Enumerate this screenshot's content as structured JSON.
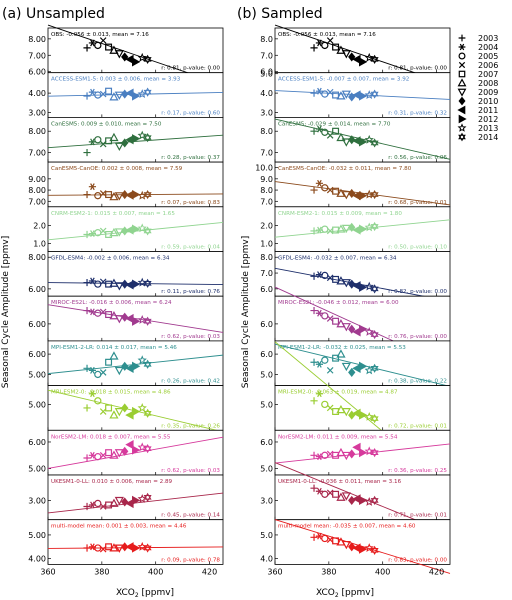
{
  "figure": {
    "panel_a_title": "(a) Unsampled",
    "panel_b_title": "(b) Sampled",
    "ylabel": "Seasonal Cycle Amplitude [ppmv]",
    "xlabel_main": "XCO",
    "xlabel_sub": "2",
    "xlabel_unit": " [ppmv]"
  },
  "chart_data": {
    "type": "scatter",
    "x_ticks": [
      "360",
      "380",
      "400",
      "420"
    ],
    "xlim": [
      360,
      425
    ],
    "years": [
      "2003",
      "2004",
      "2005",
      "2006",
      "2007",
      "2008",
      "2009",
      "2010",
      "2011",
      "2012",
      "2013",
      "2014"
    ],
    "markers": [
      "plus",
      "asterisk",
      "circle",
      "x",
      "square",
      "triangle-up",
      "triangle-down",
      "diamond",
      "triangle-left",
      "triangle-right",
      "star",
      "star6"
    ],
    "xco2": [
      374.5,
      376.5,
      378.5,
      380.5,
      382.5,
      384.5,
      386.5,
      388.5,
      390.5,
      392.5,
      395,
      397
    ],
    "rows": [
      {
        "id": "obs",
        "color": "#000000",
        "ylim": [
          6.0,
          8.6
        ],
        "ticks_a": [
          "8.00",
          "7.00",
          "6.00"
        ],
        "ticks_b": [
          "9.0",
          "8.0",
          "7.0",
          "6.0"
        ],
        "a": {
          "label": "OBS: -0.056 ± 0.013, mean = 7.16",
          "stats": "r: 0.81, p-value: 0.00",
          "slope": -0.056,
          "mean": 7.16,
          "values": [
            7.45,
            7.75,
            7.6,
            7.9,
            7.5,
            7.3,
            7.1,
            6.9,
            6.75,
            6.6,
            6.85,
            6.75
          ]
        },
        "b": {
          "label": "OBS: -0.056 ± 0.013, mean = 7.16",
          "stats": "r: 0.81, p-value: 0.00",
          "slope": -0.056,
          "mean": 7.16,
          "values": [
            7.45,
            7.75,
            7.6,
            7.9,
            7.5,
            7.3,
            7.1,
            6.9,
            6.75,
            6.6,
            6.85,
            6.75
          ]
        }
      },
      {
        "id": "access",
        "color": "#4a7fc1",
        "ylim": [
          2.8,
          5.0
        ],
        "ticks_a": [
          "4.00",
          "3.00"
        ],
        "ticks_b": [
          "5.0",
          "4.0",
          "3.0"
        ],
        "a": {
          "label": "ACCESS-ESM1-5: 0.003 ± 0.006, mean = 3.93",
          "stats": "r: 0.17, p-value: 0.60",
          "slope": 0.003,
          "mean": 3.93,
          "values": [
            3.85,
            4.05,
            3.9,
            3.95,
            4.1,
            3.8,
            3.9,
            3.95,
            4.0,
            3.85,
            3.95,
            4.05
          ]
        },
        "b": {
          "label": "ACCESS-ESM1-5: -0.007 ± 0.007, mean = 3.92",
          "stats": "r: 0.31, p-value: 0.32",
          "slope": -0.007,
          "mean": 3.92,
          "values": [
            4.0,
            4.1,
            3.95,
            4.05,
            3.9,
            3.85,
            3.95,
            3.8,
            3.9,
            3.85,
            3.9,
            3.95
          ]
        }
      },
      {
        "id": "canesm5",
        "color": "#2f6f3e",
        "ylim": [
          6.6,
          8.6
        ],
        "ticks_a": [
          "8.00",
          "7.00"
        ],
        "ticks_b": [
          "8.0",
          "7.0"
        ],
        "a": {
          "label": "CanESM5: 0.009 ± 0.010, mean = 7.50",
          "stats": "r: 0.28, p-value: 0.37",
          "slope": 0.009,
          "mean": 7.5,
          "values": [
            7.0,
            7.5,
            7.6,
            7.4,
            7.55,
            7.7,
            7.3,
            7.45,
            7.6,
            7.65,
            7.8,
            7.7
          ]
        },
        "b": {
          "label": "CanESM5: -0.029 ± 0.014, mean = 7.70",
          "stats": "r: 0.56, p-value: 0.06",
          "slope": -0.029,
          "mean": 7.7,
          "values": [
            8.0,
            8.1,
            7.95,
            7.8,
            8.0,
            7.7,
            7.5,
            7.6,
            7.55,
            7.5,
            7.6,
            7.45
          ]
        }
      },
      {
        "id": "canesm5-canoe",
        "color": "#8b4a1c",
        "ylim": [
          6.6,
          10.4
        ],
        "ticks_a": [
          "9.00",
          "8.00",
          "7.00"
        ],
        "ticks_b": [
          "10.0",
          "9.0",
          "8.0",
          "7.0"
        ],
        "a": {
          "label": "CanESM5-CanOE: 0.002 ± 0.008, mean = 7.59",
          "stats": "r: 0.07, p-value: 0.83",
          "slope": 0.002,
          "mean": 7.59,
          "values": [
            7.6,
            8.3,
            7.5,
            7.7,
            7.6,
            7.4,
            7.5,
            7.6,
            7.55,
            7.6,
            7.5,
            7.6
          ]
        },
        "b": {
          "label": "CanESM5-CanOE: -0.032 ± 0.011, mean = 7.80",
          "stats": "r: 0.68, p-value: 0.01",
          "slope": -0.032,
          "mean": 7.8,
          "values": [
            8.0,
            8.6,
            8.2,
            8.0,
            7.9,
            7.7,
            7.6,
            7.7,
            7.5,
            7.5,
            7.6,
            7.6
          ]
        }
      },
      {
        "id": "cnrm",
        "color": "#90d490",
        "ylim": [
          0.6,
          3.0
        ],
        "ticks_a": [
          "2.0",
          "1.0"
        ],
        "ticks_b": [
          "2.0",
          "1.0"
        ],
        "a": {
          "label": "CNRM-ESM2-1: 0.015 ± 0.007, mean = 1.65",
          "stats": "r: 0.59, p-value: 0.04",
          "slope": 0.015,
          "mean": 1.65,
          "values": [
            1.5,
            1.55,
            1.6,
            1.7,
            1.5,
            1.6,
            1.65,
            1.7,
            1.75,
            1.8,
            1.85,
            1.7
          ]
        },
        "b": {
          "label": "CNRM-ESM2-1: 0.015 ± 0.009, mean = 1.80",
          "stats": "r: 0.50, p-value: 0.10",
          "slope": 0.015,
          "mean": 1.8,
          "values": [
            1.7,
            1.75,
            1.8,
            1.7,
            1.75,
            1.8,
            1.85,
            1.9,
            1.75,
            1.8,
            1.9,
            1.95
          ]
        }
      },
      {
        "id": "gfdl",
        "color": "#1e2f6b",
        "ylim": [
          5.6,
          8.3
        ],
        "ticks_a": [
          "8.00",
          "6.00"
        ],
        "ticks_b": [
          "8.0",
          "7.0",
          "6.0"
        ],
        "a": {
          "label": "GFDL-ESM4: -0.002 ± 0.006, mean = 6.34",
          "stats": "r: 0.11, p-value: 0.76",
          "slope": -0.002,
          "mean": 6.34,
          "values": [
            6.4,
            6.5,
            6.3,
            6.45,
            6.3,
            6.35,
            6.2,
            6.3,
            6.25,
            6.3,
            6.4,
            6.35
          ]
        },
        "b": {
          "label": "GFDL-ESM4: -0.032 ± 0.007, mean = 6.34",
          "stats": "r: 0.82, p-value: 0.00",
          "slope": -0.032,
          "mean": 6.34,
          "values": [
            6.8,
            6.9,
            6.85,
            6.7,
            6.6,
            6.5,
            6.4,
            6.3,
            6.2,
            6.1,
            6.15,
            6.0
          ]
        }
      },
      {
        "id": "miroc",
        "color": "#a13a8f",
        "ylim": [
          5.4,
          7.0
        ],
        "ticks_a": [
          "6.00"
        ],
        "ticks_b": [
          "6.0"
        ],
        "a": {
          "label": "MIROC-ES2L: -0.016 ± 0.006, mean = 6.24",
          "stats": "r: 0.62, p-value: 0.03",
          "slope": -0.016,
          "mean": 6.24,
          "values": [
            6.5,
            6.45,
            6.4,
            6.45,
            6.35,
            6.3,
            6.2,
            6.25,
            6.2,
            6.1,
            6.15,
            6.1
          ]
        },
        "b": {
          "label": "MIROC-ES2L: -0.046 ± 0.012, mean = 6.00",
          "stats": "r: 0.76, p-value: 0.00",
          "slope": -0.046,
          "mean": 6.0,
          "values": [
            6.5,
            6.4,
            6.3,
            6.2,
            6.1,
            6.0,
            5.9,
            5.8,
            5.7,
            5.8,
            5.7,
            5.6
          ]
        }
      },
      {
        "id": "mpi",
        "color": "#2e8f8f",
        "ylim": [
          4.5,
          6.6
        ],
        "ticks_a": [
          "6.00",
          "5.00"
        ],
        "ticks_b": [
          "6.0",
          "5.0"
        ],
        "a": {
          "label": "MPI-ESM1-2-LR: 0.014 ± 0.017, mean = 5.46",
          "stats": "r: 0.26, p-value: 0.42",
          "slope": 0.014,
          "mean": 5.46,
          "values": [
            5.3,
            5.2,
            5.0,
            5.1,
            5.6,
            5.9,
            5.2,
            5.4,
            5.3,
            5.4,
            5.7,
            5.5
          ]
        },
        "b": {
          "label": "MPI-ESM1-2-LR: -0.032 ± 0.025, mean = 5.53",
          "stats": "r: 0.38, p-value: 0.22",
          "slope": -0.032,
          "mean": 5.53,
          "values": [
            5.6,
            5.5,
            5.7,
            5.2,
            5.8,
            6.0,
            5.4,
            5.1,
            5.3,
            5.4,
            5.2,
            5.3
          ]
        }
      },
      {
        "id": "miub",
        "color": "#9acd32",
        "ylim": [
          4.3,
          5.5
        ],
        "ticks_a": [
          "5.00"
        ],
        "ticks_b": [
          "5.0"
        ],
        "a": {
          "label": "MRI-ESM2-0: -0.018 ± 0.015, mean = 4.86",
          "stats": "r: 0.35, p-value: 0.26",
          "slope": -0.018,
          "mean": 4.86,
          "values": [
            4.9,
            5.3,
            5.1,
            4.8,
            4.9,
            4.7,
            4.8,
            4.9,
            4.7,
            4.8,
            4.9,
            4.75
          ]
        },
        "b": {
          "label": "MRI-ESM2-0: -0.063 ± 0.019, mean = 4.87",
          "stats": "r: 0.72, p-value: 0.01",
          "slope": -0.063,
          "mean": 4.87,
          "values": [
            5.1,
            5.3,
            5.0,
            4.9,
            4.8,
            4.85,
            4.8,
            4.7,
            4.75,
            4.7,
            4.65,
            4.6
          ]
        }
      },
      {
        "id": "noresm",
        "color": "#d63a9c",
        "ylim": [
          4.8,
          6.4
        ],
        "ticks_a": [
          "6.00",
          "5.00"
        ],
        "ticks_b": [
          "6.0",
          "5.0"
        ],
        "a": {
          "label": "NorESM2-LM: 0.018 ± 0.007, mean = 5.55",
          "stats": "r: 0.62, p-value: 0.03",
          "slope": 0.018,
          "mean": 5.55,
          "values": [
            5.4,
            5.5,
            5.45,
            5.5,
            5.6,
            5.5,
            5.6,
            5.65,
            5.9,
            5.7,
            5.8,
            5.75
          ]
        },
        "b": {
          "label": "NorESM2-LM: 0.011 ± 0.009, mean = 5.54",
          "stats": "r: 0.36, p-value: 0.25",
          "slope": 0.011,
          "mean": 5.54,
          "values": [
            5.5,
            5.45,
            5.5,
            5.55,
            5.5,
            5.6,
            5.5,
            5.55,
            5.8,
            5.6,
            5.65,
            5.6
          ]
        }
      },
      {
        "id": "ukesm",
        "color": "#a8264a",
        "ylim": [
          2.4,
          3.8
        ],
        "ticks_a": [
          "3.00"
        ],
        "ticks_b": [
          "3.0"
        ],
        "a": {
          "label": "UKESM1-0-LL: 0.010 ± 0.006, mean = 2.89",
          "stats": "r: 0.45, p-value: 0.14",
          "slope": 0.01,
          "mean": 2.89,
          "values": [
            2.8,
            2.85,
            2.9,
            2.8,
            2.85,
            2.9,
            3.0,
            2.95,
            2.9,
            3.0,
            3.05,
            3.1
          ]
        },
        "b": {
          "label": "UKESM1-0-LL: -0.036 ± 0.011, mean = 3.16",
          "stats": "r: 0.71, p-value: 0.01",
          "slope": -0.036,
          "mean": 3.16,
          "values": [
            3.4,
            3.3,
            3.2,
            3.25,
            3.2,
            3.1,
            3.15,
            3.0,
            3.05,
            3.0,
            2.95,
            3.0
          ]
        }
      },
      {
        "id": "mm",
        "color": "#e61c1c",
        "ylim": [
          3.8,
          5.6
        ],
        "ticks_a": [
          "5.00",
          "4.00"
        ],
        "ticks_b": [
          "5.0",
          "4.0"
        ],
        "a": {
          "label": "multi-model mean: 0.001 ± 0.003, mean = 4.46",
          "stats": "r: 0.09, p-value: 0.78",
          "slope": 0.001,
          "mean": 4.46,
          "values": [
            4.45,
            4.5,
            4.45,
            4.4,
            4.5,
            4.45,
            4.45,
            4.5,
            4.5,
            4.45,
            4.5,
            4.45
          ]
        },
        "b": {
          "label": "multi-model mean: -0.035 ± 0.007, mean = 4.60",
          "stats": "r: 0.83, p-value: 0.00",
          "slope": -0.035,
          "mean": 4.6,
          "values": [
            4.9,
            4.95,
            4.85,
            4.8,
            4.75,
            4.7,
            4.6,
            4.5,
            4.45,
            4.4,
            4.45,
            4.35
          ]
        }
      }
    ]
  }
}
